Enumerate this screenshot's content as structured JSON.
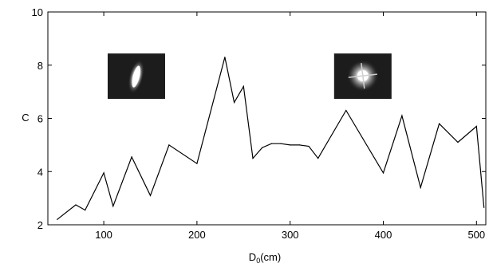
{
  "chart_data": {
    "type": "line",
    "xlabel_main": "D",
    "xlabel_sub": "0",
    "xlabel_unit": "(cm)",
    "ylabel": "C",
    "xlim": [
      40,
      510
    ],
    "ylim": [
      2,
      10
    ],
    "x_ticks": [
      100,
      200,
      300,
      400,
      500
    ],
    "x_tick_labels": [
      "100",
      "200",
      "300",
      "400",
      "500"
    ],
    "y_ticks": [
      2,
      4,
      6,
      8,
      10
    ],
    "y_tick_labels": [
      "2",
      "4",
      "6",
      "8",
      "10"
    ],
    "grid": false,
    "series": [
      {
        "color": "#000000",
        "x": [
          50,
          70,
          80,
          100,
          110,
          130,
          150,
          170,
          200,
          230,
          240,
          250,
          260,
          270,
          280,
          290,
          300,
          310,
          320,
          330,
          360,
          400,
          420,
          440,
          460,
          480,
          500,
          508
        ],
        "y": [
          2.2,
          2.75,
          2.55,
          3.95,
          2.7,
          4.55,
          3.1,
          5.0,
          4.3,
          8.3,
          6.6,
          7.2,
          4.5,
          4.9,
          5.05,
          5.05,
          5.0,
          5.0,
          4.95,
          4.5,
          6.3,
          3.95,
          6.1,
          3.4,
          5.8,
          5.1,
          5.7,
          2.65
        ]
      }
    ],
    "insets": [
      {
        "name": "elongated-spot-image",
        "x": 135,
        "y": 7.6
      },
      {
        "name": "bright-spot-image",
        "x": 378,
        "y": 7.6
      }
    ]
  }
}
